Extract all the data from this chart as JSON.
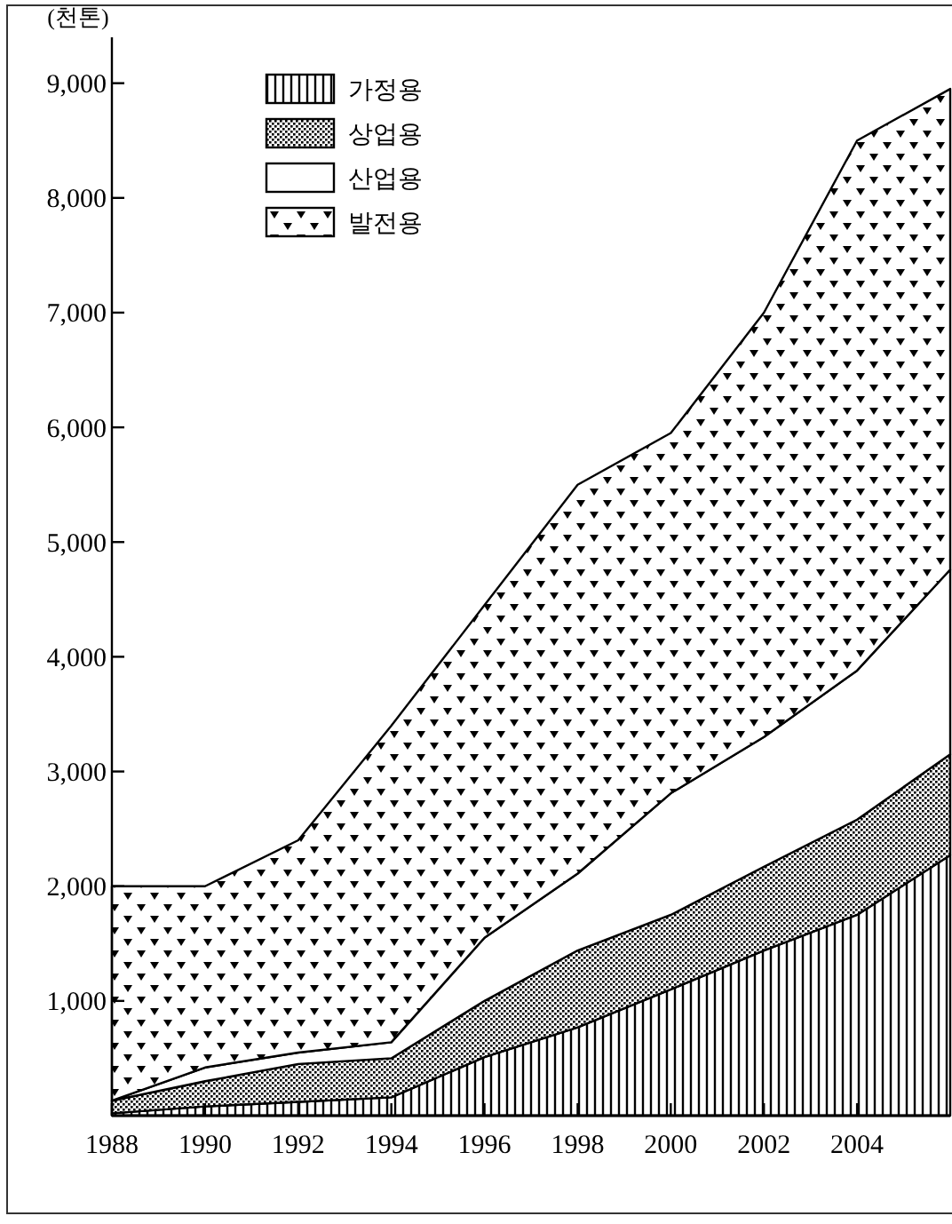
{
  "chart_data": {
    "type": "area",
    "stacked": true,
    "ylabel": "(천톤)",
    "x": [
      1988,
      1990,
      1992,
      1994,
      1996,
      1998,
      2000,
      2002,
      2004,
      2006
    ],
    "series": [
      {
        "name": "가정용",
        "color": "#000000",
        "values": [
          20,
          80,
          120,
          160,
          510,
          770,
          1100,
          1440,
          1750,
          2270
        ]
      },
      {
        "name": "상업용",
        "color": "#000000",
        "values": [
          110,
          220,
          330,
          340,
          490,
          670,
          650,
          730,
          830,
          880
        ]
      },
      {
        "name": "산업용",
        "color": "#000000",
        "values": [
          0,
          120,
          100,
          140,
          550,
          670,
          1060,
          1130,
          1300,
          1610
        ]
      },
      {
        "name": "발전용",
        "color": "#000000",
        "values": [
          1870,
          1580,
          1850,
          2760,
          2900,
          3390,
          3140,
          3700,
          4620,
          4190
        ]
      }
    ],
    "xlim": [
      1988,
      2006
    ],
    "xticks": [
      1988,
      1990,
      1992,
      1994,
      1996,
      1998,
      2000,
      2002,
      2004
    ],
    "ylim": [
      0,
      9400
    ],
    "yticks": [
      {
        "value": 1000,
        "label": "1,000"
      },
      {
        "value": 2000,
        "label": "2,000"
      },
      {
        "value": 3000,
        "label": "3,000"
      },
      {
        "value": 4000,
        "label": "4,000"
      },
      {
        "value": 5000,
        "label": "5,000"
      },
      {
        "value": 6000,
        "label": "6,000"
      },
      {
        "value": 7000,
        "label": "7,000"
      },
      {
        "value": 8000,
        "label": "8,000"
      },
      {
        "value": 9000,
        "label": "9,000"
      }
    ],
    "grid": false,
    "legend": "top left"
  }
}
